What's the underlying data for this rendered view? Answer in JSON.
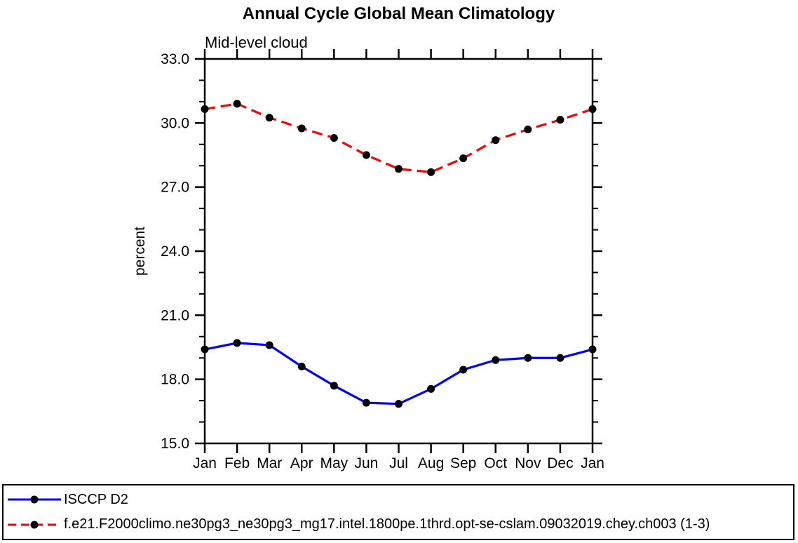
{
  "window": {
    "background": "#ffffff"
  },
  "chart_data": {
    "type": "line",
    "title": "Annual Cycle Global Mean Climatology",
    "subtitle": "Mid-level cloud",
    "ylabel": "percent",
    "xlabel": "",
    "x_categories": [
      "Jan",
      "Feb",
      "Mar",
      "Apr",
      "May",
      "Jun",
      "Jul",
      "Aug",
      "Sep",
      "Oct",
      "Nov",
      "Dec",
      "Jan"
    ],
    "ylim": [
      15.0,
      33.0
    ],
    "ytick_major_values": [
      15,
      18,
      21,
      24,
      27,
      30,
      33
    ],
    "ytick_major_labels": [
      "15.0",
      "18.0",
      "21.0",
      "24.0",
      "27.0",
      "30.0",
      "33.0"
    ],
    "ytick_minor_step": 1.0,
    "grid": "off",
    "frame_color": "#000000",
    "legend_position": "bottom-outside-boxed",
    "series": [
      {
        "id": "isccp-d2",
        "name": "ISCCP D2",
        "color": "#0000ff",
        "line_style": "solid",
        "marker": "circle",
        "marker_color": "#000000",
        "values": [
          19.4,
          19.7,
          19.6,
          18.6,
          17.7,
          16.9,
          16.85,
          17.55,
          18.45,
          18.9,
          19.0,
          19.0,
          19.4
        ]
      },
      {
        "id": "model-run",
        "name": "f.e21.F2000climo.ne30pg3_ne30pg3_mg17.intel.1800pe.1thrd.opt-se-cslam.09032019.chey.ch003 (1-3)",
        "color": "#ff0000",
        "line_style": "dashed",
        "marker": "circle",
        "marker_color": "#000000",
        "values": [
          30.65,
          30.9,
          30.25,
          29.75,
          29.3,
          28.5,
          27.85,
          27.7,
          28.35,
          29.2,
          29.7,
          30.15,
          30.65
        ]
      }
    ]
  }
}
